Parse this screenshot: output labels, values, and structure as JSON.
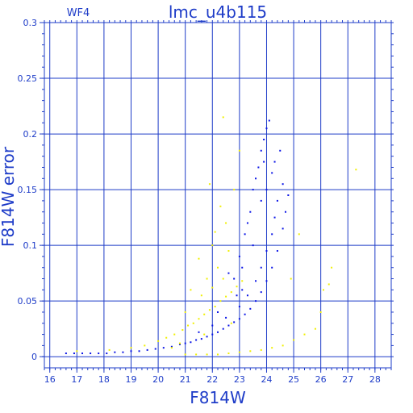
{
  "chart_data": {
    "type": "scatter",
    "title": "lmc_u4b115",
    "panel_label": "WF4",
    "xlabel": "F814W",
    "ylabel": "F814W error",
    "xlim": [
      15.8,
      28.6
    ],
    "ylim": [
      -0.01,
      0.3
    ],
    "xticks": [
      16,
      17,
      18,
      19,
      20,
      21,
      22,
      23,
      24,
      25,
      26,
      27,
      28
    ],
    "yticks": [
      0,
      0.05,
      0.1,
      0.15,
      0.2,
      0.25,
      0.3
    ],
    "ytick_labels": [
      "0",
      "0.05",
      "0.1",
      "0.15",
      "0.2",
      "0.25",
      "0.3"
    ],
    "grid": true,
    "colors": {
      "axis": "#1e3cc8",
      "grid": "#1e3cc8",
      "text": "#1e3cc8",
      "series_main": "#0a14e6",
      "series_flagged": "#f0f000"
    },
    "series": [
      {
        "color": "#0a14e6",
        "points": [
          [
            16.6,
            0.003
          ],
          [
            16.9,
            0.003
          ],
          [
            17.2,
            0.003
          ],
          [
            17.5,
            0.003
          ],
          [
            17.8,
            0.003
          ],
          [
            18.1,
            0.003
          ],
          [
            18.4,
            0.004
          ],
          [
            18.7,
            0.004
          ],
          [
            19.0,
            0.005
          ],
          [
            19.3,
            0.005
          ],
          [
            19.6,
            0.006
          ],
          [
            19.9,
            0.007
          ],
          [
            20.2,
            0.008
          ],
          [
            20.5,
            0.009
          ],
          [
            20.8,
            0.011
          ],
          [
            21.0,
            0.012
          ],
          [
            21.2,
            0.013
          ],
          [
            21.4,
            0.015
          ],
          [
            21.6,
            0.016
          ],
          [
            21.8,
            0.018
          ],
          [
            22.0,
            0.02
          ],
          [
            22.2,
            0.022
          ],
          [
            22.4,
            0.025
          ],
          [
            22.6,
            0.028
          ],
          [
            22.8,
            0.031
          ],
          [
            23.0,
            0.034
          ],
          [
            23.2,
            0.038
          ],
          [
            23.4,
            0.043
          ],
          [
            23.6,
            0.05
          ],
          [
            23.8,
            0.058
          ],
          [
            24.0,
            0.068
          ],
          [
            24.2,
            0.08
          ],
          [
            24.4,
            0.095
          ],
          [
            24.6,
            0.115
          ],
          [
            24.7,
            0.13
          ],
          [
            24.8,
            0.145
          ],
          [
            21.5,
            0.022
          ],
          [
            22.0,
            0.028
          ],
          [
            22.5,
            0.035
          ],
          [
            23.0,
            0.045
          ],
          [
            23.3,
            0.055
          ],
          [
            23.6,
            0.068
          ],
          [
            23.8,
            0.08
          ],
          [
            24.0,
            0.095
          ],
          [
            24.2,
            0.11
          ],
          [
            24.3,
            0.125
          ],
          [
            24.4,
            0.14
          ],
          [
            24.6,
            0.155
          ],
          [
            23.0,
            0.09
          ],
          [
            23.2,
            0.11
          ],
          [
            23.4,
            0.13
          ],
          [
            23.5,
            0.15
          ],
          [
            23.7,
            0.17
          ],
          [
            23.8,
            0.185
          ],
          [
            23.9,
            0.195
          ],
          [
            24.0,
            0.205
          ],
          [
            24.1,
            0.212
          ],
          [
            23.9,
            0.175
          ],
          [
            23.6,
            0.16
          ],
          [
            23.3,
            0.12
          ],
          [
            22.6,
            0.075
          ],
          [
            22.8,
            0.07
          ],
          [
            23.1,
            0.08
          ],
          [
            24.5,
            0.185
          ],
          [
            24.3,
            0.175
          ],
          [
            24.2,
            0.165
          ],
          [
            24.0,
            0.15
          ],
          [
            23.8,
            0.14
          ],
          [
            23.5,
            0.1
          ],
          [
            23.1,
            0.06
          ],
          [
            22.9,
            0.055
          ],
          [
            22.2,
            0.04
          ]
        ]
      },
      {
        "color": "#f0f000",
        "points": [
          [
            17.0,
            0.005
          ],
          [
            18.2,
            0.006
          ],
          [
            19.0,
            0.008
          ],
          [
            19.5,
            0.01
          ],
          [
            20.0,
            0.014
          ],
          [
            20.3,
            0.017
          ],
          [
            20.6,
            0.02
          ],
          [
            20.9,
            0.024
          ],
          [
            21.1,
            0.028
          ],
          [
            21.3,
            0.03
          ],
          [
            21.5,
            0.034
          ],
          [
            21.7,
            0.038
          ],
          [
            21.9,
            0.042
          ],
          [
            22.1,
            0.045
          ],
          [
            22.3,
            0.05
          ],
          [
            22.5,
            0.054
          ],
          [
            22.7,
            0.058
          ],
          [
            22.9,
            0.063
          ],
          [
            23.1,
            0.068
          ],
          [
            21.0,
            0.04
          ],
          [
            21.6,
            0.055
          ],
          [
            22.0,
            0.062
          ],
          [
            22.4,
            0.07
          ],
          [
            21.2,
            0.06
          ],
          [
            21.8,
            0.07
          ],
          [
            22.2,
            0.08
          ],
          [
            22.6,
            0.095
          ],
          [
            21.5,
            0.088
          ],
          [
            22.0,
            0.1
          ],
          [
            22.5,
            0.12
          ],
          [
            22.8,
            0.15
          ],
          [
            22.3,
            0.135
          ],
          [
            21.9,
            0.155
          ],
          [
            22.4,
            0.215
          ],
          [
            23.0,
            0.185
          ],
          [
            22.1,
            0.112
          ],
          [
            21.0,
            0.002
          ],
          [
            21.4,
            0.002
          ],
          [
            21.8,
            0.002
          ],
          [
            22.2,
            0.002
          ],
          [
            22.6,
            0.003
          ],
          [
            23.0,
            0.004
          ],
          [
            23.4,
            0.005
          ],
          [
            23.8,
            0.006
          ],
          [
            24.2,
            0.008
          ],
          [
            24.6,
            0.01
          ],
          [
            25.0,
            0.015
          ],
          [
            25.4,
            0.02
          ],
          [
            25.8,
            0.025
          ],
          [
            26.0,
            0.04
          ],
          [
            26.1,
            0.06
          ],
          [
            26.3,
            0.065
          ],
          [
            26.4,
            0.08
          ],
          [
            25.2,
            0.11
          ],
          [
            27.3,
            0.168
          ],
          [
            24.9,
            0.07
          ],
          [
            20.5,
            0.008
          ],
          [
            20.8,
            0.012
          ],
          [
            21.7,
            0.02
          ],
          [
            22.7,
            0.03
          ]
        ]
      }
    ]
  }
}
